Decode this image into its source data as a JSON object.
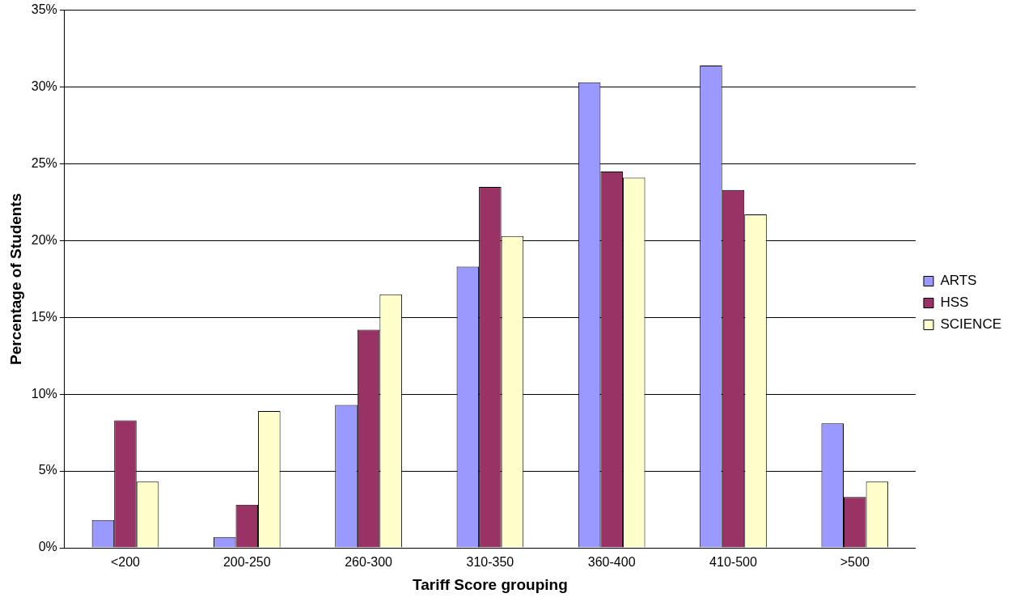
{
  "chart_data": {
    "type": "bar",
    "xlabel": "Tariff Score grouping",
    "ylabel": "Percentage of Students",
    "categories": [
      "<200",
      "200-250",
      "260-300",
      "310-350",
      "360-400",
      "410-500",
      ">500"
    ],
    "series": [
      {
        "name": "ARTS",
        "color": "#9999ff",
        "values": [
          1.8,
          0.7,
          9.3,
          18.3,
          30.3,
          31.4,
          8.1
        ]
      },
      {
        "name": "HSS",
        "color": "#993366",
        "values": [
          8.3,
          2.8,
          14.2,
          23.5,
          24.5,
          23.3,
          3.3
        ]
      },
      {
        "name": "SCIENCE",
        "color": "#ffffcc",
        "values": [
          4.3,
          8.9,
          16.5,
          20.3,
          24.1,
          21.7,
          4.3
        ]
      }
    ],
    "ylim": [
      0,
      35
    ],
    "yticks": [
      {
        "value": 0,
        "label": "0%"
      },
      {
        "value": 5,
        "label": "5%"
      },
      {
        "value": 10,
        "label": "10%"
      },
      {
        "value": 15,
        "label": "15%"
      },
      {
        "value": 20,
        "label": "20%"
      },
      {
        "value": 25,
        "label": "25%"
      },
      {
        "value": 30,
        "label": "30%"
      },
      {
        "value": 35,
        "label": "35%"
      }
    ],
    "grid": "y",
    "legend": "right"
  }
}
